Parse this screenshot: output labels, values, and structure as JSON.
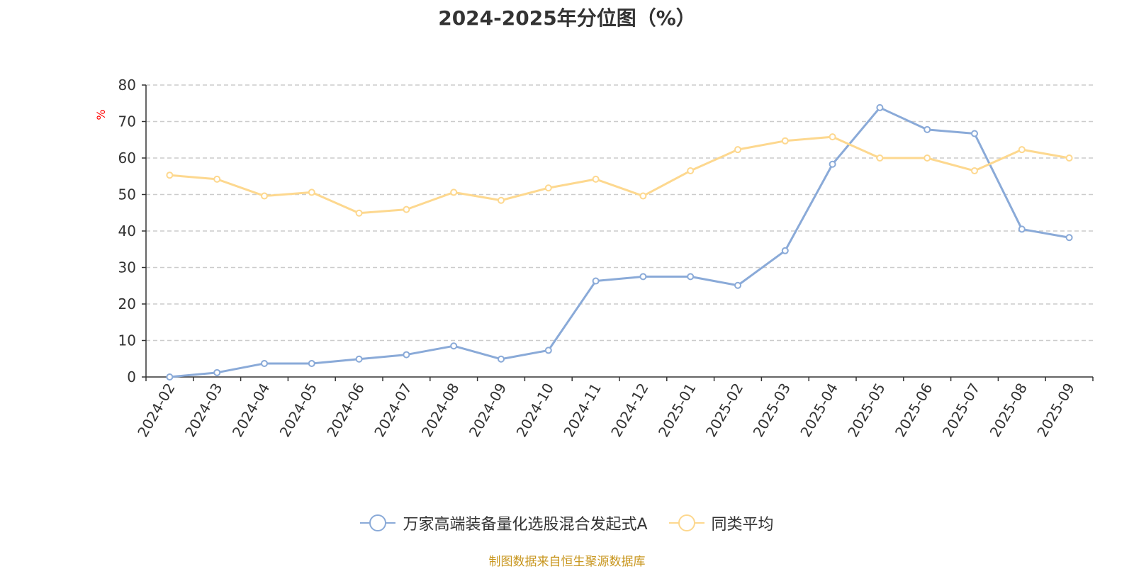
{
  "chart_data": {
    "type": "line",
    "title": "2024-2025年分位图（%）",
    "ylabel": "%",
    "xlabel": "",
    "ylim": [
      0,
      80
    ],
    "yticks": [
      0,
      10,
      20,
      30,
      40,
      50,
      60,
      70,
      80
    ],
    "grid": true,
    "categories": [
      "2024-02",
      "2024-03",
      "2024-04",
      "2024-05",
      "2024-06",
      "2024-07",
      "2024-08",
      "2024-09",
      "2024-10",
      "2024-11",
      "2024-12",
      "2025-01",
      "2025-02",
      "2025-03",
      "2025-04",
      "2025-05",
      "2025-06",
      "2025-07",
      "2025-08",
      "2025-09"
    ],
    "series": [
      {
        "name": "万家高端装备量化选股混合发起式A",
        "color": "#8aaad8",
        "values": [
          0,
          1.2,
          3.7,
          3.7,
          4.9,
          6.1,
          8.5,
          4.9,
          7.3,
          26.3,
          27.5,
          27.5,
          25.1,
          34.6,
          58.3,
          73.8,
          67.8,
          66.7,
          40.5,
          38.2
        ]
      },
      {
        "name": "同类平均",
        "color": "#fdd88f",
        "values": [
          55.3,
          54.2,
          49.6,
          50.6,
          44.9,
          45.9,
          50.6,
          48.4,
          51.8,
          54.2,
          49.6,
          56.5,
          62.3,
          64.7,
          65.8,
          60.0,
          60.0,
          56.5,
          62.3,
          60.0
        ]
      }
    ],
    "legend_position": "bottom-center",
    "source_note": "制图数据来自恒生聚源数据库"
  }
}
